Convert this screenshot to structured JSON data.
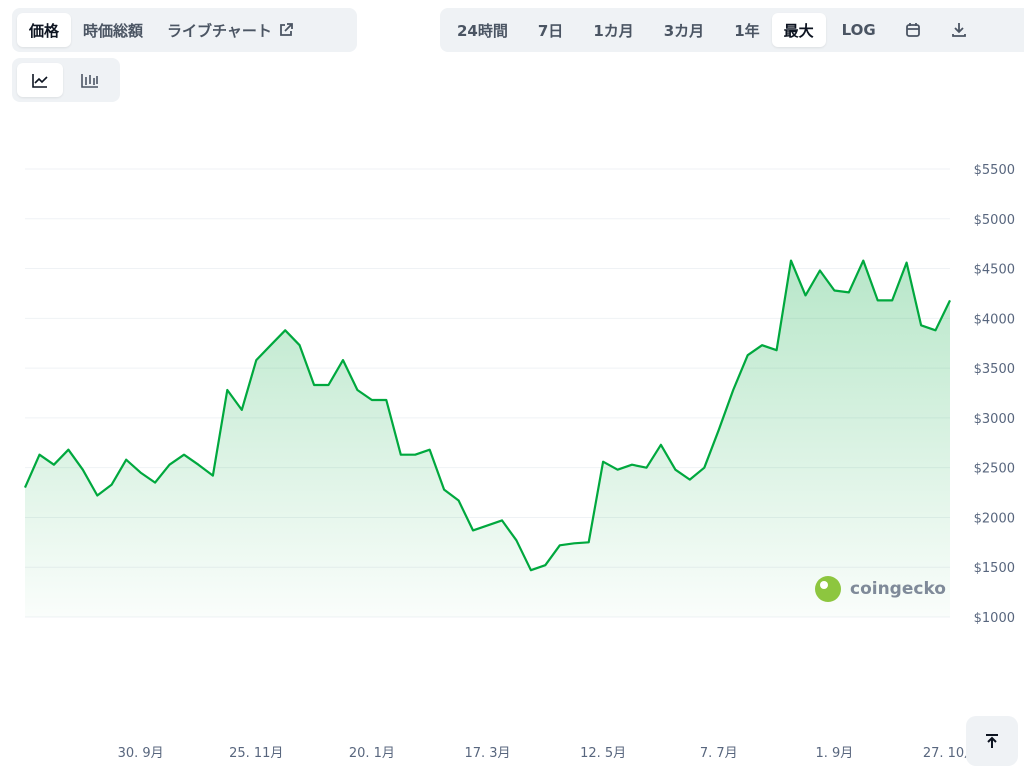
{
  "controls": {
    "price_tabs": [
      "価格",
      "時価総額",
      "ライブチャート"
    ],
    "ranges": [
      "24時間",
      "7日",
      "1カ月",
      "3カ月",
      "1年",
      "最大",
      "LOG"
    ]
  },
  "chart_data": {
    "type": "line",
    "watermark": "coingecko",
    "color": "#00a83e",
    "categories": [
      null,
      null,
      null,
      null,
      null,
      null,
      null,
      null,
      "30. 9月",
      null,
      null,
      null,
      null,
      null,
      null,
      null,
      "25. 11月",
      null,
      null,
      null,
      null,
      null,
      null,
      null,
      "20. 1月",
      null,
      null,
      null,
      null,
      null,
      null,
      null,
      "17. 3月",
      null,
      null,
      null,
      null,
      null,
      null,
      null,
      "12. 5月",
      null,
      null,
      null,
      null,
      null,
      null,
      null,
      "7. 7月",
      null,
      null,
      null,
      null,
      null,
      null,
      null,
      "1. 9月",
      null,
      null,
      null,
      null,
      null,
      null,
      null,
      "27. 10月"
    ],
    "values": [
      2300,
      2630,
      2530,
      2680,
      2480,
      2220,
      2330,
      2580,
      2450,
      2350,
      2530,
      2630,
      2530,
      2420,
      3280,
      3080,
      3580,
      3730,
      3880,
      3730,
      3330,
      3330,
      3580,
      3280,
      3180,
      3180,
      2630,
      2630,
      2680,
      2280,
      2170,
      1870,
      1920,
      1970,
      1770,
      1470,
      1520,
      1720,
      1740,
      1750,
      2560,
      2480,
      2530,
      2500,
      2730,
      2480,
      2380,
      2500,
      2880,
      3280,
      3630,
      3730,
      3680,
      4580,
      4230,
      4480,
      4280,
      4260,
      4580,
      4180,
      4180,
      4560,
      3930,
      3880,
      4180
    ],
    "ylim": [
      1000,
      5500
    ],
    "yticks": [
      {
        "value": 1000,
        "label": "$1000"
      },
      {
        "value": 1500,
        "label": "$1500"
      },
      {
        "value": 2000,
        "label": "$2000"
      },
      {
        "value": 2500,
        "label": "$2500"
      },
      {
        "value": 3000,
        "label": "$3000"
      },
      {
        "value": 3500,
        "label": "$3500"
      },
      {
        "value": 4000,
        "label": "$4000"
      },
      {
        "value": 4500,
        "label": "$4500"
      },
      {
        "value": 5000,
        "label": "$5000"
      },
      {
        "value": 5500,
        "label": "$5500"
      }
    ],
    "grid": true
  }
}
